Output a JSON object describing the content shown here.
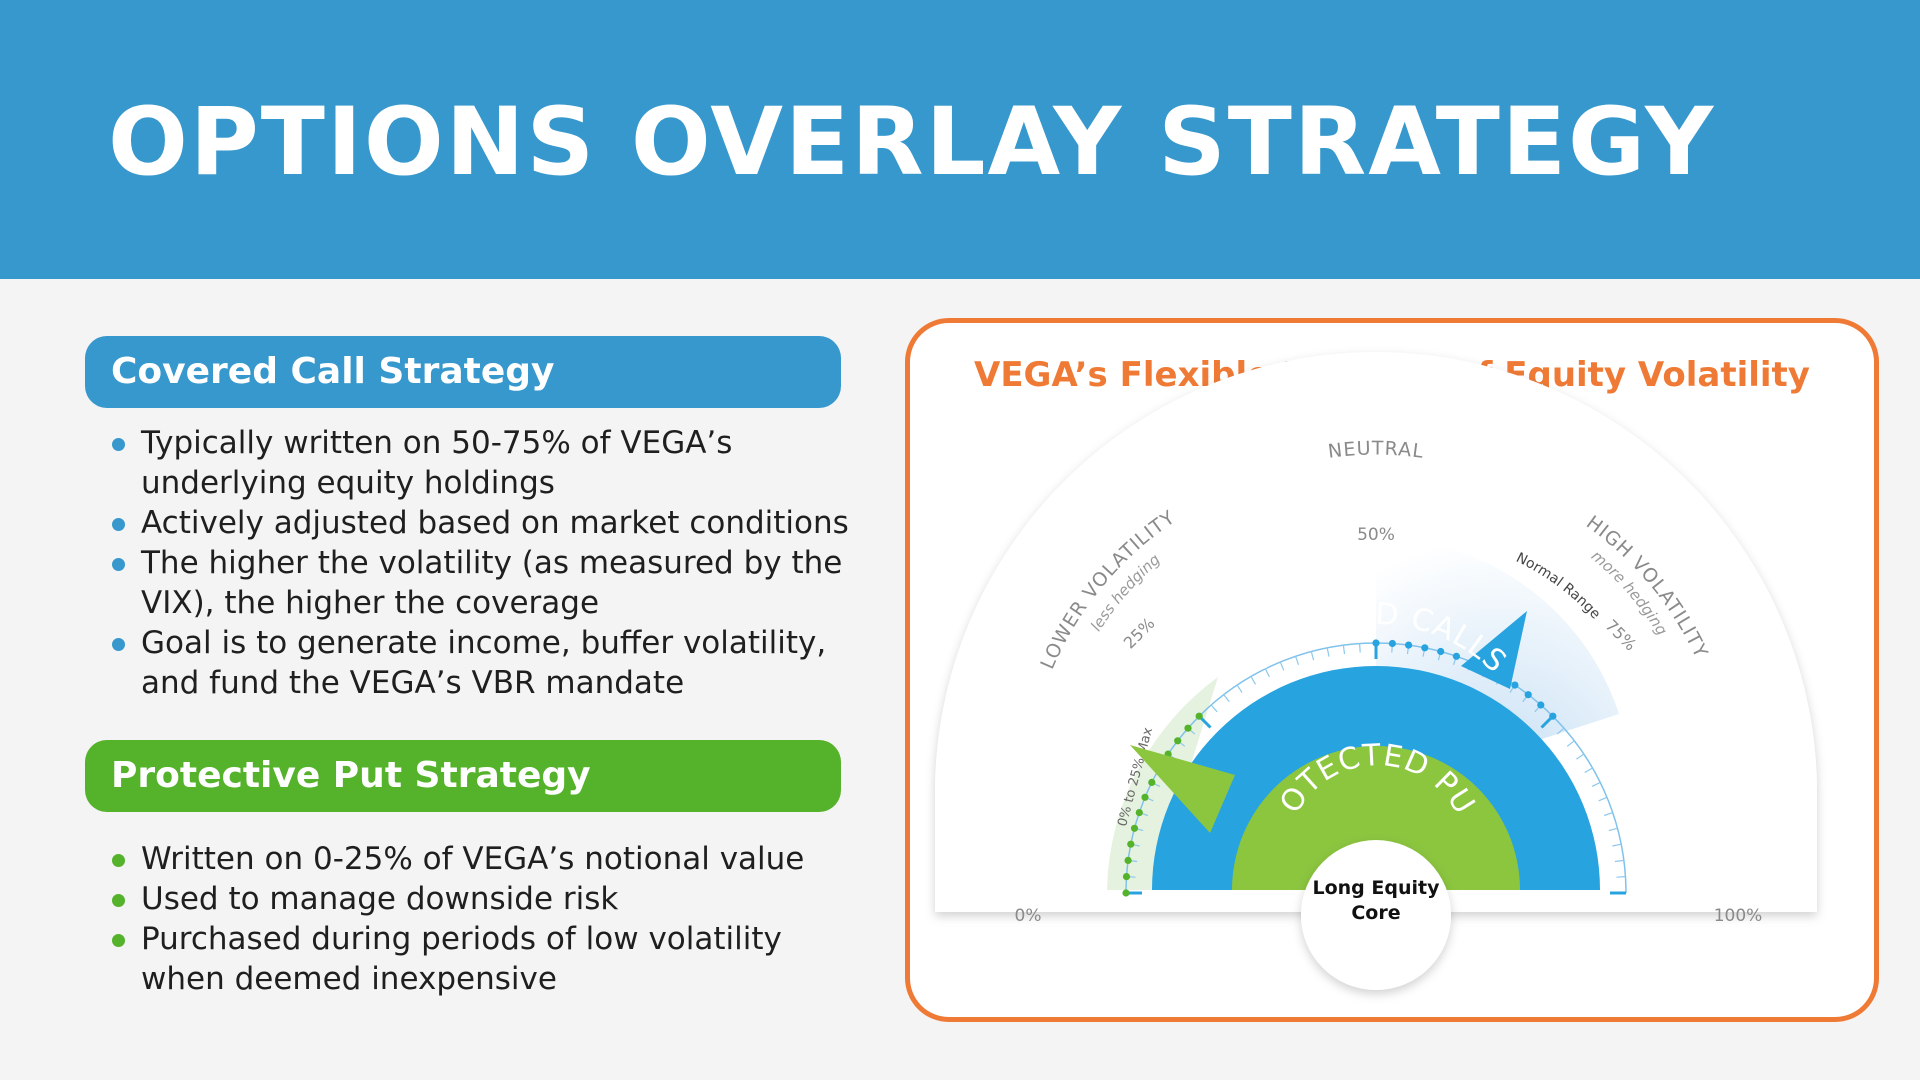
{
  "header": {
    "title": "OPTIONS OVERLAY STRATEGY"
  },
  "covered_call": {
    "heading": "Covered Call Strategy",
    "bullets": [
      "Typically written on 50-75% of VEGA’s underlying equity holdings",
      "Actively adjusted based on market conditions",
      "The higher the volatility (as measured by the VIX), the higher the coverage",
      "Goal is to generate income, buffer volatility, and fund the VEGA’s VBR mandate"
    ]
  },
  "protective_put": {
    "heading": "Protective Put Strategy",
    "bullets": [
      "Written on 0-25% of VEGA’s notional value",
      "Used to manage downside risk",
      "Purchased during periods of low volatility when deemed inexpensive"
    ]
  },
  "gauge": {
    "title": "VEGA’s Flexible Hedging of Equity Volatility",
    "neutral_label": "NEUTRAL",
    "lower_label": "LOWER VOLATILITY",
    "lower_sub": "less hedging",
    "high_label": "HIGH VOLATILITY",
    "high_sub": "more hedging",
    "tick_0": "0%",
    "tick_25": "25%",
    "tick_50": "50%",
    "tick_75": "75%",
    "tick_100": "100%",
    "normal_range": "Normal Range",
    "put_range": "0% to 25% Max",
    "covered_calls": "COVERED CALLS",
    "protected_puts": "PROTECTED PUTS",
    "core_line1": "Long Equity",
    "core_line2": "Core",
    "colors": {
      "accent_blue": "#3698cd",
      "accent_green": "#54b22b",
      "panel_orange": "#ef7a35",
      "calls_blue": "#27a3e0",
      "puts_green": "#8cc63f"
    }
  }
}
